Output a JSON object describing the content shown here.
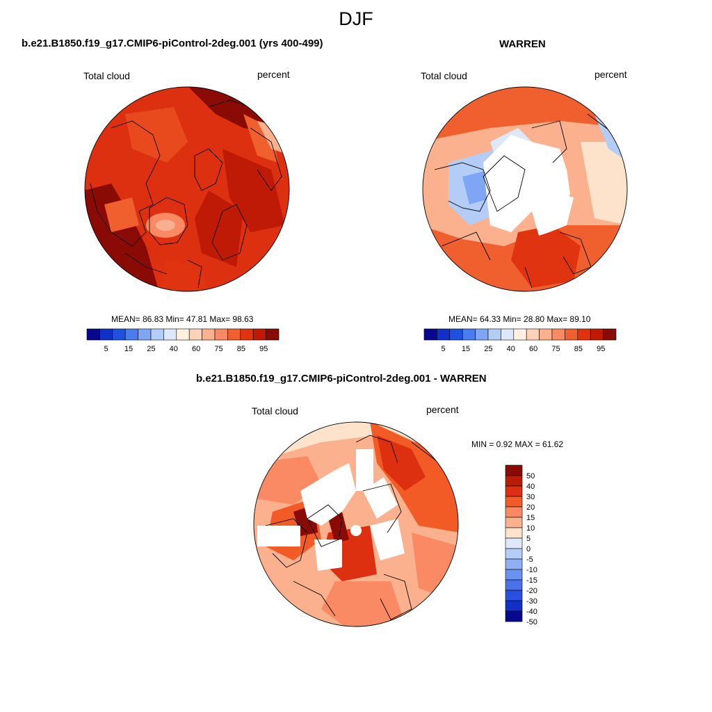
{
  "page_title": "DJF",
  "panels": [
    {
      "title": "b.e21.B1850.f19_g17.CMIP6-piControl-2deg.001 (yrs 400-499)",
      "left_label": "Total cloud",
      "right_label": "percent",
      "stats": "MEAN=  86.83  Min=  47.81  Max=  98.63"
    },
    {
      "title": "WARREN",
      "left_label": "Total cloud",
      "right_label": "percent",
      "stats": "MEAN=  64.33  Min=  28.80  Max=  89.10"
    },
    {
      "title": "b.e21.B1850.f19_g17.CMIP6-piControl-2deg.001 - WARREN",
      "left_label": "Total cloud",
      "right_label": "percent",
      "stats": "MIN =   0.92 MAX =  61.62"
    }
  ],
  "colorbar_horizontal": {
    "colors": [
      "#08088f",
      "#1030c8",
      "#2050e0",
      "#4a7cf0",
      "#7ea6f4",
      "#b4cdf6",
      "#dde9fa",
      "#fff0df",
      "#fcd3b6",
      "#fbb18d",
      "#f98a64",
      "#f0602f",
      "#e03410",
      "#bf1a05",
      "#8a0a05"
    ],
    "labels": [
      "5",
      "15",
      "25",
      "40",
      "60",
      "75",
      "85",
      "95"
    ]
  },
  "colorbar_vertical": {
    "colors": [
      "#8a0a05",
      "#b81c05",
      "#dc3010",
      "#f25a26",
      "#f98a64",
      "#fbb18d",
      "#fde3cc",
      "#dde9fa",
      "#b4cdf6",
      "#8fb0f4",
      "#6a92f0",
      "#4a72ec",
      "#2a50e0",
      "#1030c8",
      "#08088f"
    ],
    "labels": [
      "50",
      "40",
      "30",
      "20",
      "15",
      "10",
      "5",
      "0",
      "-5",
      "-10",
      "-15",
      "-20",
      "-30",
      "-40",
      "-50"
    ]
  }
}
